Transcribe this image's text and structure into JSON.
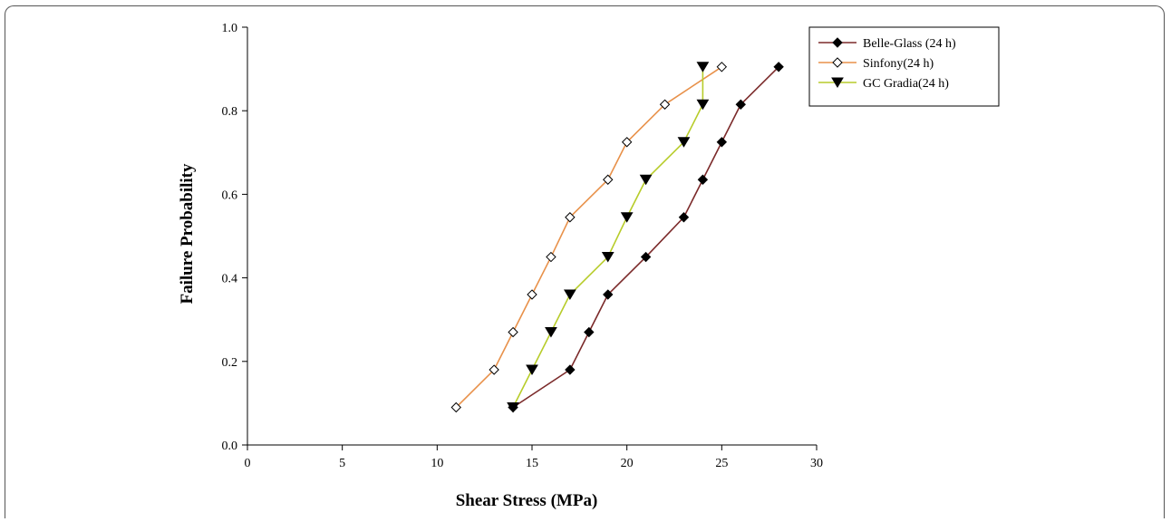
{
  "chart_data": {
    "type": "line",
    "title": "",
    "xlabel": "Shear Stress (MPa)",
    "ylabel": "Failure Probability",
    "xlim": [
      0,
      30
    ],
    "ylim": [
      0,
      1.0
    ],
    "xticks": [
      0,
      5,
      10,
      15,
      20,
      25,
      30
    ],
    "yticks": [
      "0.0",
      "0.2",
      "0.4",
      "0.6",
      "0.8",
      "1.0"
    ],
    "grid": false,
    "legend": "top-right",
    "series": [
      {
        "name": "Belle-Glass (24 h)",
        "color": "#7b2a2a",
        "marker": "filled-diamond",
        "x": [
          14,
          17,
          18,
          19,
          21,
          23,
          24,
          25,
          26,
          28
        ],
        "y": [
          0.09,
          0.18,
          0.27,
          0.36,
          0.45,
          0.545,
          0.635,
          0.725,
          0.815,
          0.905
        ]
      },
      {
        "name": "Sinfony(24 h)",
        "color": "#e8914a",
        "marker": "open-diamond",
        "x": [
          11,
          13,
          14,
          15,
          16,
          17,
          19,
          20,
          22,
          25
        ],
        "y": [
          0.09,
          0.18,
          0.27,
          0.36,
          0.45,
          0.545,
          0.635,
          0.725,
          0.815,
          0.905
        ]
      },
      {
        "name": "GC Gradia(24 h)",
        "color": "#b7cc2a",
        "marker": "filled-triangle-down",
        "x": [
          14,
          15,
          16,
          17,
          19,
          20,
          21,
          23,
          24,
          24
        ],
        "y": [
          0.09,
          0.18,
          0.27,
          0.36,
          0.45,
          0.545,
          0.635,
          0.725,
          0.815,
          0.905
        ]
      }
    ]
  }
}
